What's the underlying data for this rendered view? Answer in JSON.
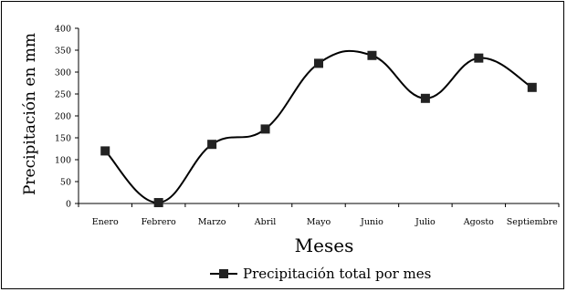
{
  "chart_data": {
    "type": "line",
    "title": "",
    "xlabel": "Meses",
    "ylabel": "Precipitación en mm",
    "categories": [
      "Enero",
      "Febrero",
      "Marzo",
      "Abril",
      "Mayo",
      "Junio",
      "Julio",
      "Agosto",
      "Septiembre"
    ],
    "series": [
      {
        "name": "Precipitación total por mes",
        "values": [
          120,
          2,
          135,
          170,
          320,
          338,
          240,
          332,
          265
        ],
        "color": "#000000",
        "marker": "square",
        "smooth": true
      }
    ],
    "ylim": [
      0,
      400
    ],
    "yticks": [
      0,
      50,
      100,
      150,
      200,
      250,
      300,
      350,
      400
    ],
    "grid": false,
    "legend_position": "bottom"
  }
}
